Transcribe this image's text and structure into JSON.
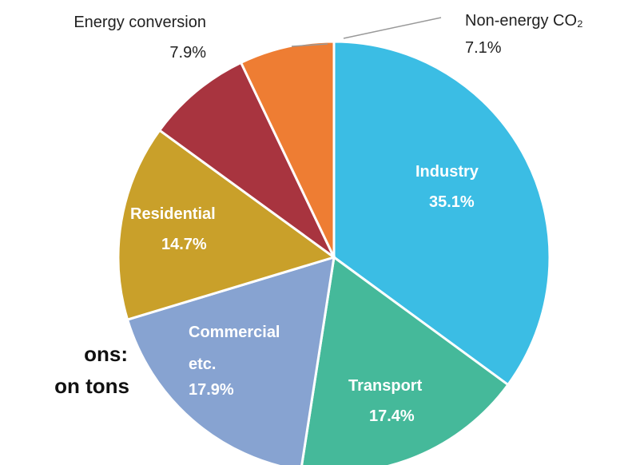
{
  "chart_data": {
    "type": "pie",
    "annotations": [
      "ons:",
      "on tons"
    ],
    "categories": [
      "Industry",
      "Transport",
      "Commercial etc.",
      "Residential",
      "Energy conversion",
      "Non-energy CO₂"
    ],
    "values": [
      35.1,
      17.4,
      17.9,
      14.7,
      7.9,
      7.1
    ],
    "value_labels": [
      "35.1%",
      "17.4%",
      "17.9%",
      "14.7%",
      "7.9%",
      "7.1%"
    ],
    "colors": [
      "#3bbde4",
      "#45b99a",
      "#87a3d1",
      "#c9a02a",
      "#a8343f",
      "#ee7d33"
    ]
  }
}
